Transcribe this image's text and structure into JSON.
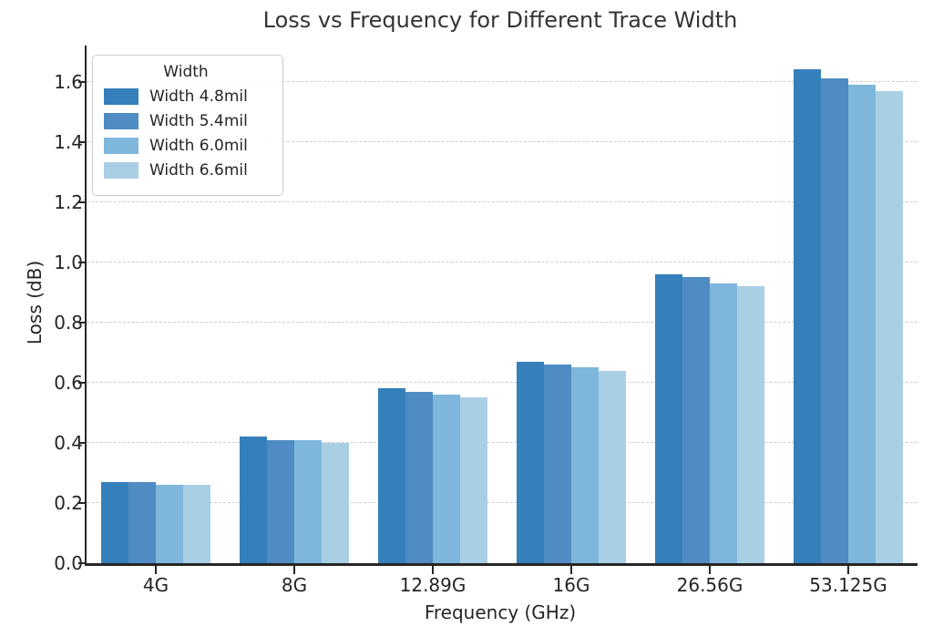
{
  "chart_data": {
    "type": "bar",
    "title": "Loss vs Frequency for Different Trace Width",
    "xlabel": "Frequency (GHz)",
    "ylabel": "Loss (dB)",
    "categories": [
      "4G",
      "8G",
      "12.89G",
      "16G",
      "26.56G",
      "53.125G"
    ],
    "series": [
      {
        "name": "Width 4.8mil",
        "color": "#3580ba",
        "values": [
          0.27,
          0.42,
          0.58,
          0.67,
          0.96,
          1.64
        ]
      },
      {
        "name": "Width 5.4mil",
        "color": "#4f8cc3",
        "values": [
          0.27,
          0.41,
          0.57,
          0.66,
          0.95,
          1.61
        ]
      },
      {
        "name": "Width 6.0mil",
        "color": "#7eb6dc",
        "values": [
          0.26,
          0.41,
          0.56,
          0.65,
          0.93,
          1.59
        ]
      },
      {
        "name": "Width 6.6mil",
        "color": "#a9cfe4",
        "values": [
          0.26,
          0.4,
          0.55,
          0.64,
          0.92,
          1.57
        ]
      }
    ],
    "legend_title": "Width",
    "legend_position": "upper left",
    "ylim": [
      0,
      1.72
    ],
    "yticks": [
      "0.0",
      "0.2",
      "0.4",
      "0.6",
      "0.8",
      "1.0",
      "1.2",
      "1.4",
      "1.6"
    ],
    "grid": true,
    "grid_style": "dashed",
    "grid_color": "#cccccc",
    "axis_color": "#262626"
  }
}
